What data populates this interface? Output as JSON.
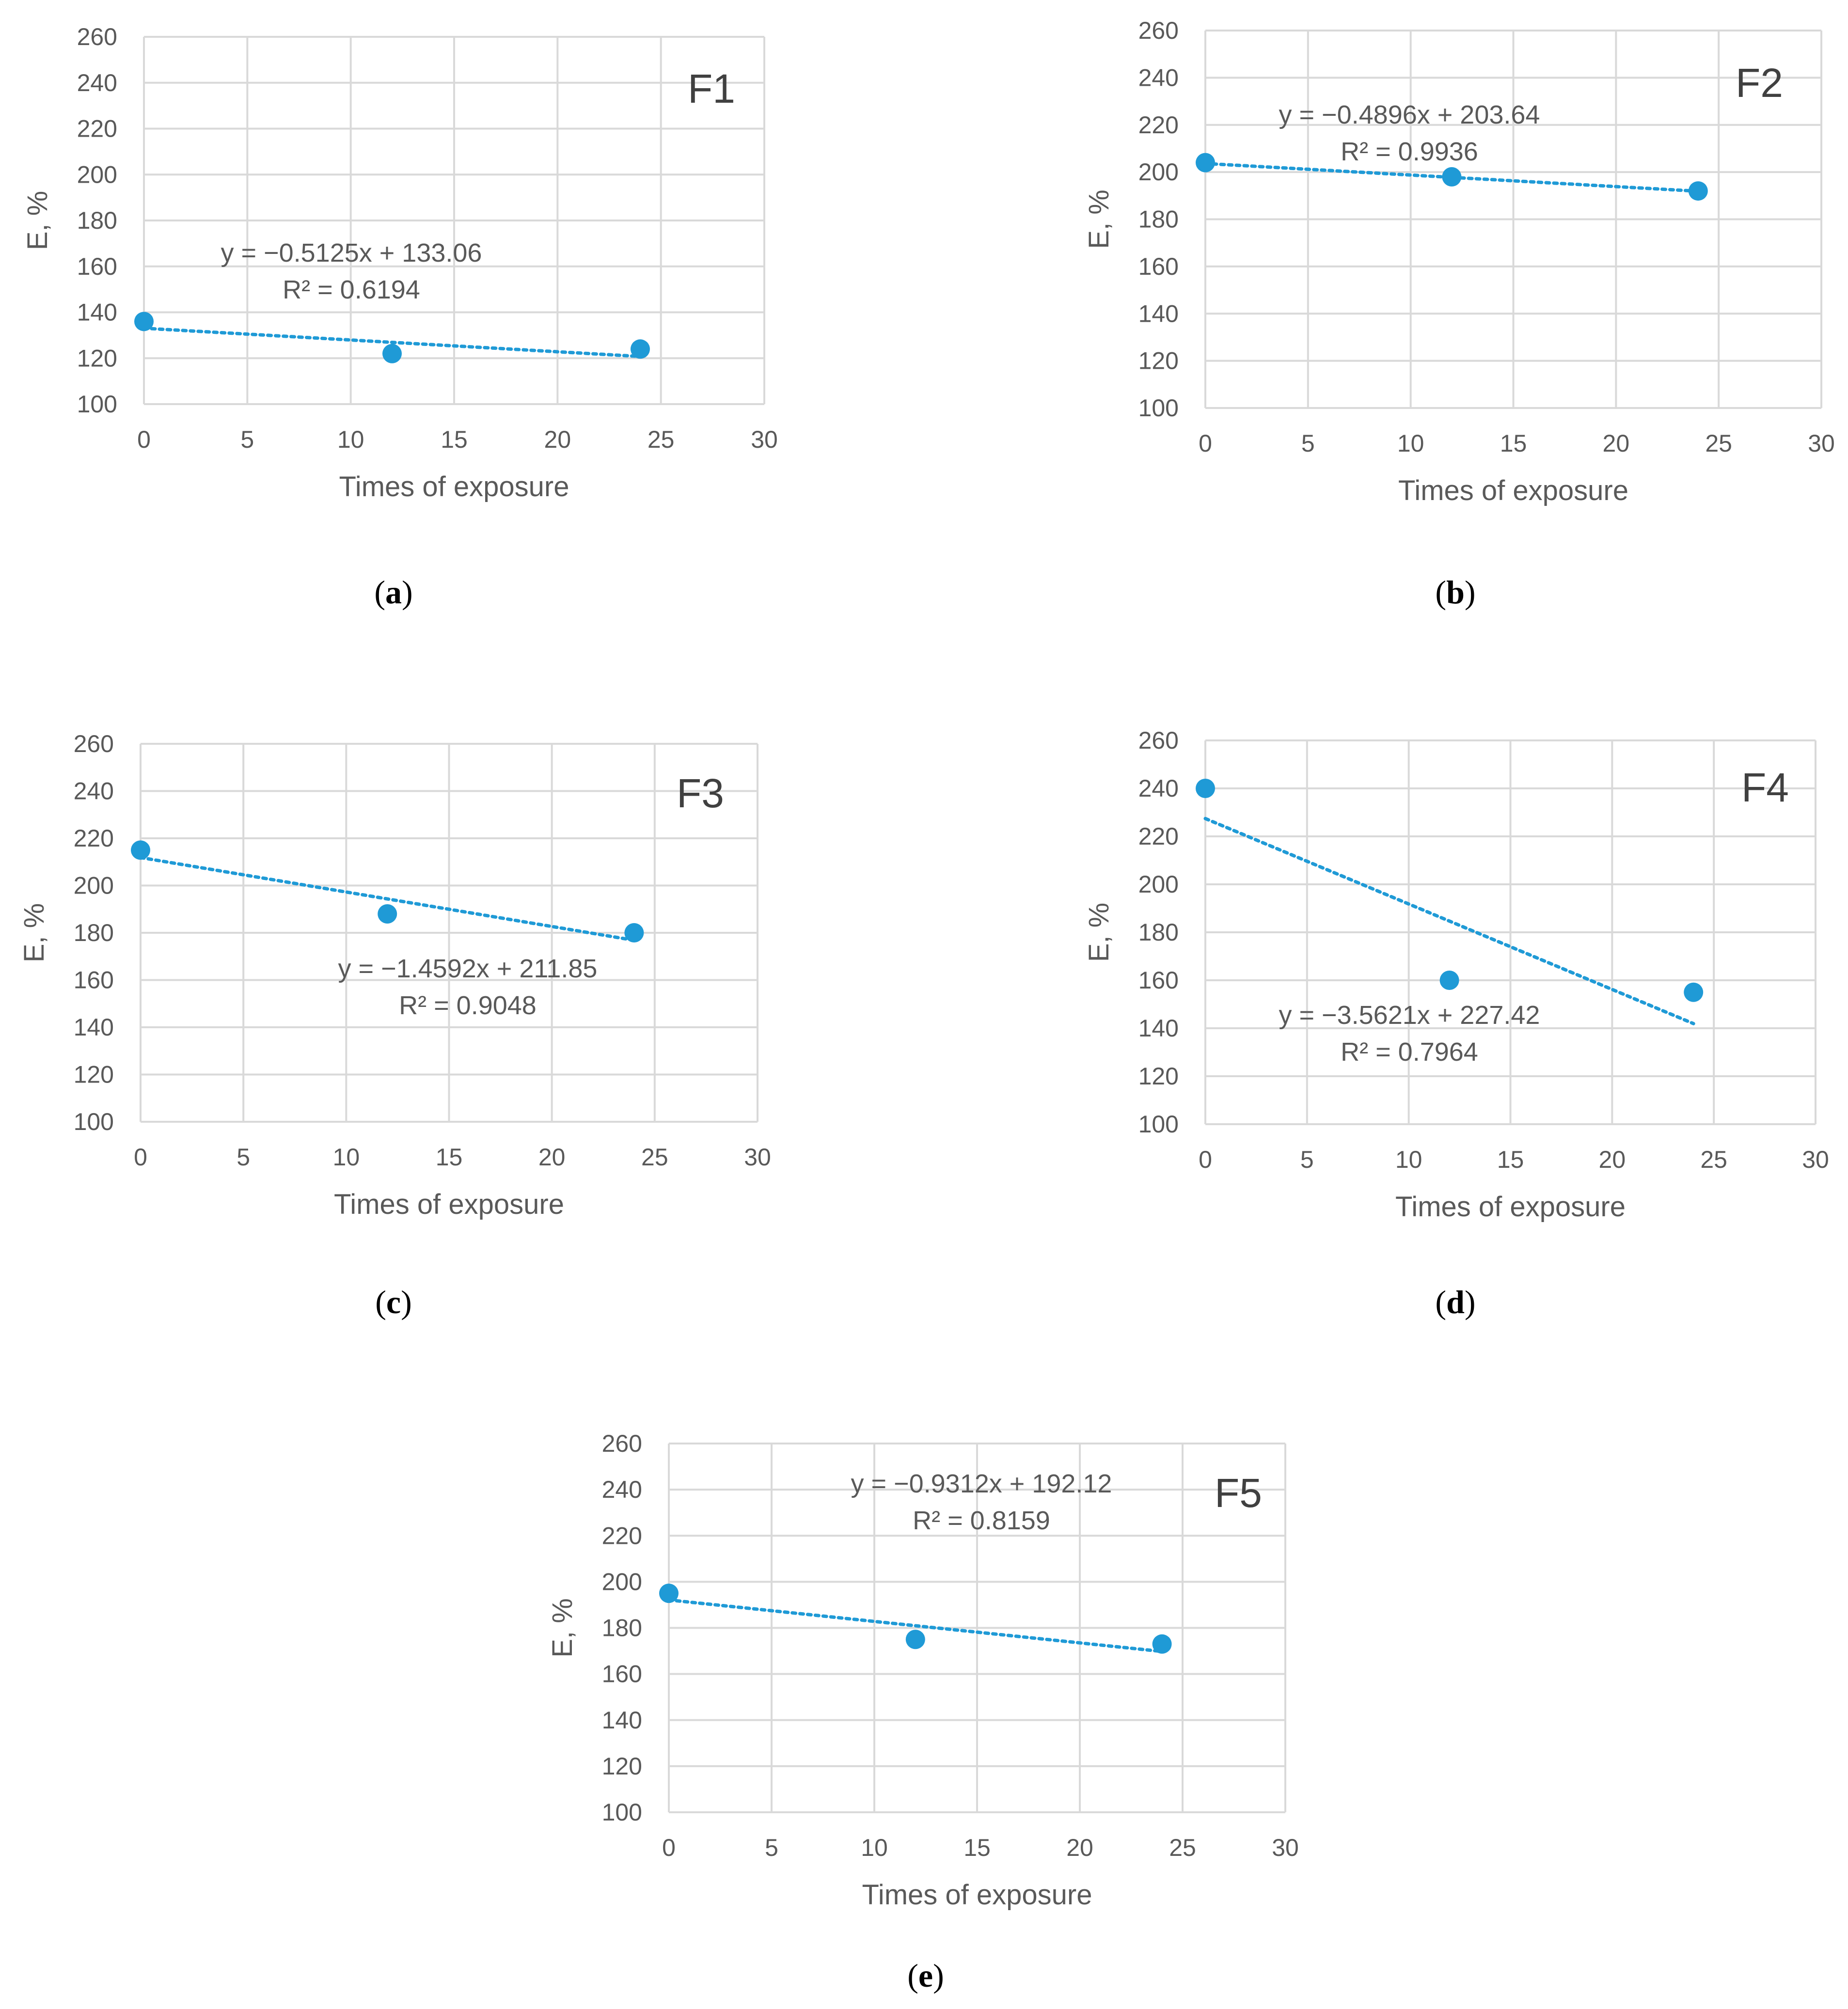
{
  "colors": {
    "series": "#1f9ad6",
    "grid": "#d9d9d9",
    "text": "#595959"
  },
  "chart_data": [
    {
      "type": "scatter",
      "panel_label": "F1",
      "caption": "a",
      "xlabel": "Times of exposure",
      "ylabel": "E, %",
      "xlim": [
        0,
        30
      ],
      "ylim": [
        100,
        260
      ],
      "xticks": [
        0,
        5,
        10,
        15,
        20,
        25,
        30
      ],
      "yticks": [
        100,
        120,
        140,
        160,
        180,
        200,
        220,
        240,
        260
      ],
      "grid": true,
      "x": [
        0,
        12,
        24
      ],
      "y": [
        136,
        122,
        124
      ],
      "trendline": {
        "type": "linear",
        "slope": -0.5125,
        "intercept": 133.06,
        "x_range": [
          0,
          24
        ]
      },
      "equation": "y = −0.5125x + 133.06",
      "r_squared": "R² = 0.6194"
    },
    {
      "type": "scatter",
      "panel_label": "F2",
      "caption": "b",
      "xlabel": "Times of exposure",
      "ylabel": "E, %",
      "xlim": [
        0,
        30
      ],
      "ylim": [
        100,
        260
      ],
      "xticks": [
        0,
        5,
        10,
        15,
        20,
        25,
        30
      ],
      "yticks": [
        100,
        120,
        140,
        160,
        180,
        200,
        220,
        240,
        260
      ],
      "grid": true,
      "x": [
        0,
        12,
        24
      ],
      "y": [
        204,
        198,
        192
      ],
      "trendline": {
        "type": "linear",
        "slope": -0.4896,
        "intercept": 203.64,
        "x_range": [
          0,
          24
        ]
      },
      "equation": "y = −0.4896x + 203.64",
      "r_squared": "R² = 0.9936"
    },
    {
      "type": "scatter",
      "panel_label": "F3",
      "caption": "c",
      "xlabel": "Times of exposure",
      "ylabel": "E, %",
      "xlim": [
        0,
        30
      ],
      "ylim": [
        100,
        260
      ],
      "xticks": [
        0,
        5,
        10,
        15,
        20,
        25,
        30
      ],
      "yticks": [
        100,
        120,
        140,
        160,
        180,
        200,
        220,
        240,
        260
      ],
      "grid": true,
      "x": [
        0,
        12,
        24
      ],
      "y": [
        215,
        188,
        180
      ],
      "trendline": {
        "type": "linear",
        "slope": -1.4592,
        "intercept": 211.85,
        "x_range": [
          0,
          24
        ]
      },
      "equation": "y = −1.4592x + 211.85",
      "r_squared": "R² = 0.9048"
    },
    {
      "type": "scatter",
      "panel_label": "F4",
      "caption": "d",
      "xlabel": "Times of exposure",
      "ylabel": "E, %",
      "xlim": [
        0,
        30
      ],
      "ylim": [
        100,
        260
      ],
      "xticks": [
        0,
        5,
        10,
        15,
        20,
        25,
        30
      ],
      "yticks": [
        100,
        120,
        140,
        160,
        180,
        200,
        220,
        240,
        260
      ],
      "grid": true,
      "x": [
        0,
        12,
        24
      ],
      "y": [
        240,
        160,
        155
      ],
      "trendline": {
        "type": "linear",
        "slope": -3.5621,
        "intercept": 227.42,
        "x_range": [
          0,
          24
        ]
      },
      "equation": "y = −3.5621x + 227.42",
      "r_squared": "R² = 0.7964"
    },
    {
      "type": "scatter",
      "panel_label": "F5",
      "caption": "e",
      "xlabel": "Times of exposure",
      "ylabel": "E, %",
      "xlim": [
        0,
        30
      ],
      "ylim": [
        100,
        260
      ],
      "xticks": [
        0,
        5,
        10,
        15,
        20,
        25,
        30
      ],
      "yticks": [
        100,
        120,
        140,
        160,
        180,
        200,
        220,
        240,
        260
      ],
      "grid": true,
      "x": [
        0,
        12,
        24
      ],
      "y": [
        195,
        175,
        173
      ],
      "trendline": {
        "type": "linear",
        "slope": -0.9312,
        "intercept": 192.12,
        "x_range": [
          0,
          24
        ]
      },
      "equation": "y = −0.9312x + 192.12",
      "r_squared": "R² = 0.8159"
    }
  ]
}
